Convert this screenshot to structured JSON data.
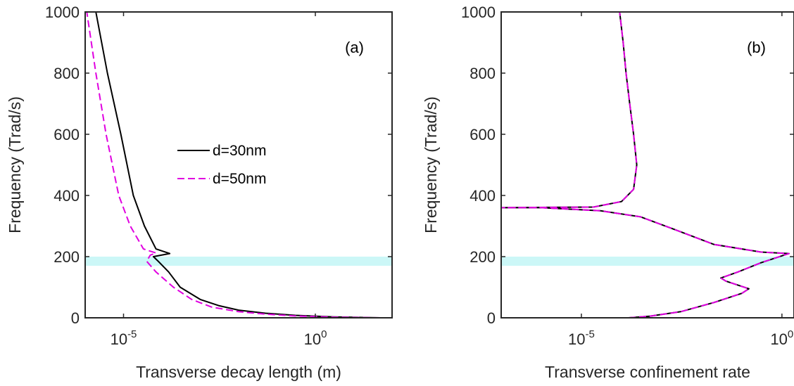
{
  "chart_data": [
    {
      "type": "line",
      "panel_label": "(a)",
      "xlabel": "Transverse decay length (m)",
      "ylabel": "Frequency (Trad/s)",
      "x_scale": "log",
      "xlim": [
        1e-06,
        100
      ],
      "ylim": [
        0,
        1000
      ],
      "x_ticks": [
        {
          "value": 1e-05,
          "base": "10",
          "exp": "-5"
        },
        {
          "value": 1,
          "base": "10",
          "exp": "0"
        }
      ],
      "y_ticks": [
        0,
        200,
        400,
        600,
        800,
        1000
      ],
      "band": {
        "y_range": [
          170,
          200
        ],
        "color": "#ccf7f7"
      },
      "legend": {
        "placement": "center",
        "entries": [
          "d=30nm",
          "d=50nm"
        ]
      },
      "series": [
        {
          "name": "d=30nm",
          "color": "#000000",
          "dash": "solid",
          "points": [
            [
              50,
              0
            ],
            [
              3,
              3
            ],
            [
              0.3,
              8
            ],
            [
              0.05,
              15
            ],
            [
              0.01,
              25
            ],
            [
              0.003,
              40
            ],
            [
              0.001,
              60
            ],
            [
              0.0003,
              100
            ],
            [
              0.00015,
              150
            ],
            [
              8e-05,
              185
            ],
            [
              6e-05,
              200
            ],
            [
              0.00016,
              210
            ],
            [
              7e-05,
              225
            ],
            [
              3.5e-05,
              300
            ],
            [
              1.8e-05,
              400
            ],
            [
              8.5e-06,
              600
            ],
            [
              3.8e-06,
              800
            ],
            [
              1.9e-06,
              1000
            ]
          ]
        },
        {
          "name": "d=50nm",
          "color": "#e000e0",
          "dash": "dashed",
          "points": [
            [
              50,
              0
            ],
            [
              3,
              2
            ],
            [
              0.3,
              6
            ],
            [
              0.05,
              12
            ],
            [
              0.01,
              20
            ],
            [
              0.002,
              35
            ],
            [
              0.0006,
              60
            ],
            [
              0.0002,
              100
            ],
            [
              7e-05,
              150
            ],
            [
              4e-05,
              185
            ],
            [
              5e-05,
              205
            ],
            [
              7e-05,
              212
            ],
            [
              3.3e-05,
              225
            ],
            [
              1.5e-05,
              300
            ],
            [
              7.5e-06,
              400
            ],
            [
              3.5e-06,
              600
            ],
            [
              1.9e-06,
              800
            ],
            [
              1.1e-06,
              1000
            ]
          ]
        }
      ]
    },
    {
      "type": "line",
      "panel_label": "(b)",
      "xlabel": "Transverse confinement rate",
      "ylabel": "Frequency (Trad/s)",
      "x_scale": "log",
      "xlim": [
        1e-07,
        2
      ],
      "ylim": [
        0,
        1000
      ],
      "x_ticks": [
        {
          "value": 1e-05,
          "base": "10",
          "exp": "-5"
        },
        {
          "value": 1,
          "base": "10",
          "exp": "0"
        }
      ],
      "y_ticks": [
        0,
        200,
        400,
        600,
        800,
        1000
      ],
      "band": {
        "y_range": [
          170,
          200
        ],
        "color": "#ccf7f7"
      },
      "series": [
        {
          "name": "d=30nm",
          "color": "#000000",
          "dash": "solid",
          "points": [
            [
              0.00015,
              0
            ],
            [
              0.0005,
              5
            ],
            [
              0.003,
              20
            ],
            [
              0.02,
              50
            ],
            [
              0.1,
              80
            ],
            [
              0.15,
              95
            ],
            [
              0.04,
              120
            ],
            [
              0.03,
              130
            ],
            [
              0.08,
              150
            ],
            [
              0.3,
              180
            ],
            [
              1.5,
              210
            ],
            [
              0.3,
              215
            ],
            [
              0.02,
              240
            ],
            [
              0.002,
              290
            ],
            [
              0.0003,
              330
            ],
            [
              3e-05,
              350
            ],
            [
              1e-06,
              360
            ],
            [
              1e-07,
              360
            ],
            [
              2e-05,
              362
            ],
            [
              0.0001,
              380
            ],
            [
              0.0002,
              420
            ],
            [
              0.00024,
              500
            ],
            [
              0.0002,
              600
            ],
            [
              0.00016,
              700
            ],
            [
              0.00013,
              800
            ],
            [
              0.00011,
              900
            ],
            [
              9e-05,
              1000
            ]
          ]
        },
        {
          "name": "d=50nm",
          "color": "#e000e0",
          "dash": "dashed",
          "points": [
            [
              0.00015,
              0
            ],
            [
              0.0005,
              5
            ],
            [
              0.003,
              20
            ],
            [
              0.02,
              50
            ],
            [
              0.1,
              80
            ],
            [
              0.15,
              95
            ],
            [
              0.04,
              120
            ],
            [
              0.03,
              130
            ],
            [
              0.08,
              150
            ],
            [
              0.3,
              180
            ],
            [
              1.5,
              210
            ],
            [
              0.3,
              215
            ],
            [
              0.02,
              240
            ],
            [
              0.002,
              290
            ],
            [
              0.0003,
              330
            ],
            [
              3e-05,
              350
            ],
            [
              1e-06,
              360
            ],
            [
              1e-07,
              360
            ],
            [
              2e-05,
              362
            ],
            [
              0.0001,
              380
            ],
            [
              0.0002,
              420
            ],
            [
              0.00024,
              500
            ],
            [
              0.0002,
              600
            ],
            [
              0.00016,
              700
            ],
            [
              0.00013,
              800
            ],
            [
              0.00011,
              900
            ],
            [
              9e-05,
              1000
            ]
          ]
        }
      ]
    }
  ]
}
